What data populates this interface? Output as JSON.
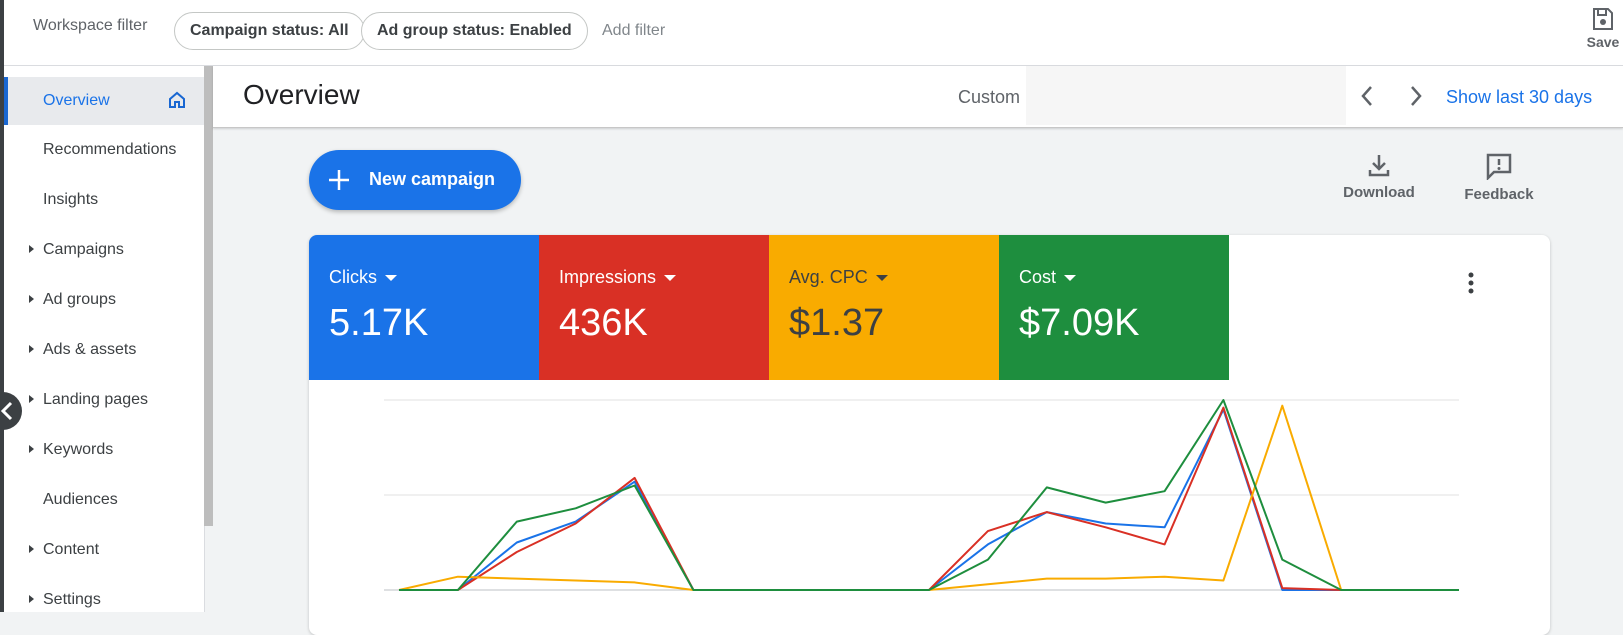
{
  "topbar": {
    "workspace_filter": "Workspace filter",
    "chips": [
      "Campaign status: All",
      "Ad group status: Enabled"
    ],
    "add_filter": "Add filter",
    "save_label": "Save"
  },
  "sidebar": {
    "items": [
      {
        "label": "Overview",
        "expandable": false,
        "active": true
      },
      {
        "label": "Recommendations",
        "expandable": false
      },
      {
        "label": "Insights",
        "expandable": false
      },
      {
        "label": "Campaigns",
        "expandable": true
      },
      {
        "label": "Ad groups",
        "expandable": true
      },
      {
        "label": "Ads & assets",
        "expandable": true
      },
      {
        "label": "Landing pages",
        "expandable": true
      },
      {
        "label": "Keywords",
        "expandable": true
      },
      {
        "label": "Audiences",
        "expandable": false
      },
      {
        "label": "Content",
        "expandable": true
      },
      {
        "label": "Settings",
        "expandable": true
      }
    ]
  },
  "header": {
    "title": "Overview",
    "date_type": "Custom",
    "show_last": "Show last 30 days"
  },
  "actions": {
    "new_campaign": "New campaign",
    "download": "Download",
    "feedback": "Feedback"
  },
  "metrics": [
    {
      "label": "Clicks",
      "value": "5.17K",
      "color": "#1a73e8"
    },
    {
      "label": "Impressions",
      "value": "436K",
      "color": "#d93025"
    },
    {
      "label": "Avg. CPC",
      "value": "$1.37",
      "color": "#f9ab00"
    },
    {
      "label": "Cost",
      "value": "$7.09K",
      "color": "#1e8e3e"
    }
  ],
  "icons": {
    "save": "save-icon",
    "home": "home-icon",
    "collapse": "chevron-left-icon",
    "prev": "chevron-left-icon",
    "next": "chevron-right-icon",
    "plus": "plus-icon",
    "download": "download-icon",
    "feedback": "feedback-icon",
    "more": "more-vert-icon"
  },
  "chart_data": {
    "type": "line",
    "x_count": 19,
    "ylim": [
      0,
      100
    ],
    "grid": true,
    "series": [
      {
        "color": "#1a73e8",
        "values": [
          0,
          0,
          25,
          36,
          57,
          0,
          0,
          0,
          0,
          0,
          24,
          41,
          35,
          33,
          95,
          0,
          0,
          0,
          0
        ]
      },
      {
        "color": "#d93025",
        "values": [
          0,
          0,
          20,
          35,
          59,
          0,
          0,
          0,
          0,
          0,
          31,
          41,
          33,
          24,
          96,
          1,
          0,
          0,
          0
        ]
      },
      {
        "color": "#f9ab00",
        "values": [
          0,
          7,
          6,
          5,
          4,
          0,
          0,
          0,
          0,
          0,
          3,
          6,
          6,
          7,
          5,
          97,
          0,
          0,
          0
        ]
      },
      {
        "color": "#1e8e3e",
        "values": [
          0,
          0,
          36,
          43,
          55,
          0,
          0,
          0,
          0,
          0,
          16,
          54,
          46,
          52,
          100,
          16,
          0,
          0,
          0
        ]
      }
    ]
  }
}
